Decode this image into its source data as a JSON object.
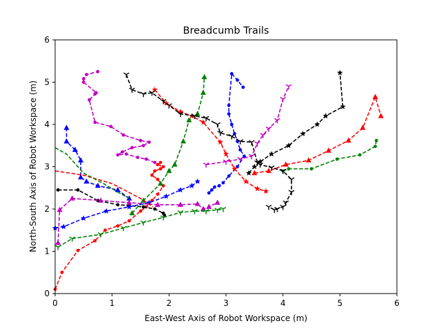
{
  "chart_data": {
    "type": "line",
    "title": "Breadcumb Trails",
    "xlabel": "East-West Axis of Robot Workspace (m)",
    "ylabel": "North-South Axis of Robot Workspace (m)",
    "xlim": [
      0,
      6
    ],
    "ylim": [
      0,
      6
    ],
    "xticks": [
      "0",
      "1",
      "2",
      "3",
      "4",
      "5",
      "6"
    ],
    "yticks": [
      "0",
      "1",
      "2",
      "3",
      "4",
      "5",
      "6"
    ],
    "grid": false,
    "legend": "none",
    "series": [
      {
        "color": "#ff0000",
        "marker": "dot",
        "x": [
          0.0,
          0.12,
          0.4,
          0.7,
          0.88,
          1.1,
          1.3,
          1.5,
          1.6,
          1.7,
          1.8,
          1.9,
          1.8,
          1.7,
          1.75,
          1.85,
          1.9,
          1.8,
          1.85
        ],
        "y": [
          0.1,
          0.5,
          1.02,
          1.25,
          1.5,
          1.6,
          1.72,
          1.95,
          2.05,
          2.2,
          2.35,
          2.55,
          2.7,
          2.8,
          2.9,
          2.95,
          3.0,
          3.05,
          3.1
        ]
      },
      {
        "color": "#008000",
        "marker": "dot",
        "x": [
          4.0,
          4.1,
          4.5,
          4.95,
          5.35,
          5.62,
          5.64
        ],
        "y": [
          2.9,
          2.95,
          2.95,
          3.18,
          3.28,
          3.48,
          3.62
        ]
      },
      {
        "color": "#0000ff",
        "marker": "dot",
        "x": [
          2.7,
          2.75,
          2.8,
          2.88,
          2.95,
          3.05,
          3.2,
          3.32,
          3.25,
          3.2,
          3.15,
          3.1,
          3.05,
          3.05,
          3.1,
          3.2,
          3.3
        ],
        "y": [
          2.38,
          2.45,
          2.52,
          2.55,
          2.62,
          2.78,
          3.0,
          3.25,
          3.4,
          3.6,
          3.78,
          4.0,
          4.25,
          4.45,
          5.2,
          5.05,
          4.88
        ]
      },
      {
        "color": "#bf00bf",
        "marker": "dot",
        "x": [
          1.75,
          1.6,
          1.45,
          1.25,
          1.1,
          1.18,
          1.35,
          1.55,
          1.65,
          1.5,
          1.2,
          0.98,
          0.7,
          0.6,
          0.7,
          0.72,
          0.5,
          0.5,
          0.55,
          0.75
        ],
        "y": [
          3.1,
          3.18,
          3.22,
          3.3,
          3.28,
          3.35,
          3.45,
          3.5,
          3.58,
          3.62,
          3.75,
          3.95,
          4.05,
          4.58,
          4.72,
          4.75,
          5.0,
          5.08,
          5.18,
          5.25
        ]
      },
      {
        "color": "#000000",
        "marker": "dot",
        "x": [
          0.05,
          0.4,
          0.75,
          1.1,
          1.3,
          1.55,
          1.75,
          1.9,
          1.92
        ],
        "y": [
          2.45,
          2.45,
          2.2,
          2.1,
          2.08,
          2.05,
          2.0,
          1.9,
          1.85
        ]
      },
      {
        "color": "#ff0000",
        "marker": "triangle",
        "x": [
          3.5,
          3.75,
          4.05,
          4.45,
          4.8,
          5.15,
          5.4,
          5.62,
          5.72
        ],
        "y": [
          2.85,
          2.9,
          3.05,
          3.15,
          3.38,
          3.62,
          3.92,
          4.65,
          4.2
        ]
      },
      {
        "color": "#008000",
        "marker": "triangle",
        "x": [
          1.35,
          1.55,
          1.85,
          2.0,
          2.1,
          2.25,
          2.35,
          2.5,
          2.6,
          2.62
        ],
        "y": [
          1.9,
          2.2,
          2.6,
          2.9,
          3.05,
          3.6,
          4.1,
          4.25,
          4.75,
          5.12
        ]
      },
      {
        "color": "#0000ff",
        "marker": "triangle",
        "x": [
          1.3,
          1.1,
          0.75,
          0.55,
          0.45,
          0.45,
          0.35,
          0.2,
          0.2
        ],
        "y": [
          2.25,
          2.45,
          2.55,
          2.65,
          2.75,
          3.15,
          3.4,
          3.6,
          3.92
        ]
      },
      {
        "color": "#bf00bf",
        "marker": "triangle",
        "x": [
          0.05,
          0.08,
          0.3,
          0.8,
          1.3,
          1.8,
          2.2,
          2.5,
          2.6,
          2.7,
          2.85
        ],
        "y": [
          1.2,
          1.98,
          2.25,
          2.2,
          2.15,
          2.1,
          2.1,
          2.12,
          2.0,
          2.05,
          2.15
        ]
      },
      {
        "color": "#ff0000",
        "marker": "star",
        "x": [
          1.75,
          1.95,
          2.2,
          2.4,
          2.6,
          2.9,
          3.0,
          3.15,
          3.35,
          3.55,
          3.7
        ],
        "y": [
          4.82,
          4.5,
          4.3,
          4.2,
          4.05,
          3.58,
          3.3,
          2.95,
          2.65,
          2.48,
          2.42
        ]
      },
      {
        "color": "#0000ff",
        "marker": "star",
        "x": [
          0.0,
          0.15,
          0.5,
          0.9,
          1.3,
          1.65,
          1.95,
          2.2,
          2.4,
          2.5
        ],
        "y": [
          1.55,
          1.58,
          1.78,
          1.95,
          2.05,
          2.15,
          2.3,
          2.45,
          2.55,
          2.65
        ]
      },
      {
        "color": "#000000",
        "marker": "star",
        "x": [
          3.4,
          3.5,
          3.6,
          3.8,
          4.1,
          4.35,
          4.6,
          4.75,
          5.05,
          5.0
        ],
        "y": [
          2.85,
          3.0,
          3.12,
          3.3,
          3.5,
          3.78,
          4.0,
          4.2,
          4.42,
          5.22
        ]
      },
      {
        "color": "#000000",
        "marker": "tri_down",
        "x": [
          1.25,
          1.35,
          1.55,
          1.7,
          1.9,
          2.0,
          2.2,
          2.45,
          2.65,
          2.85,
          2.9,
          3.1,
          3.25,
          3.45,
          3.55,
          3.6,
          3.8,
          4.0,
          4.15,
          4.15,
          4.05,
          4.0,
          3.9,
          3.85,
          3.75
        ],
        "y": [
          5.18,
          4.82,
          4.72,
          4.75,
          4.55,
          4.45,
          4.25,
          4.2,
          4.15,
          4.0,
          3.8,
          3.72,
          3.6,
          3.58,
          3.1,
          3.05,
          2.98,
          2.9,
          2.7,
          2.4,
          2.15,
          2.05,
          2.0,
          1.98,
          2.05
        ]
      },
      {
        "color": "#008000",
        "marker": "tri_down",
        "x": [
          0.05,
          0.3,
          0.8,
          1.2,
          1.55,
          1.9,
          2.2,
          2.45,
          2.65,
          2.85,
          2.95
        ],
        "y": [
          1.1,
          1.3,
          1.4,
          1.55,
          1.68,
          1.8,
          1.92,
          1.95,
          1.95,
          1.98,
          2.0
        ]
      },
      {
        "color": "#bf00bf",
        "marker": "tri_down",
        "x": [
          2.65,
          3.0,
          3.25,
          3.45,
          3.55,
          3.65,
          3.75,
          3.9,
          4.0,
          4.1
        ],
        "y": [
          3.05,
          3.12,
          3.18,
          3.25,
          3.55,
          3.75,
          3.9,
          4.1,
          4.6,
          4.9
        ]
      },
      {
        "color": "#ff0000",
        "marker": "none",
        "x": [
          0.0,
          0.5,
          1.0,
          1.5,
          1.72
        ],
        "y": [
          2.9,
          2.8,
          2.6,
          2.25,
          2.05
        ]
      },
      {
        "color": "#008000",
        "marker": "none",
        "x": [
          0.0,
          0.2,
          0.5,
          0.85,
          1.1,
          1.3
        ],
        "y": [
          3.45,
          3.3,
          2.85,
          2.6,
          2.4,
          2.25
        ]
      }
    ]
  }
}
